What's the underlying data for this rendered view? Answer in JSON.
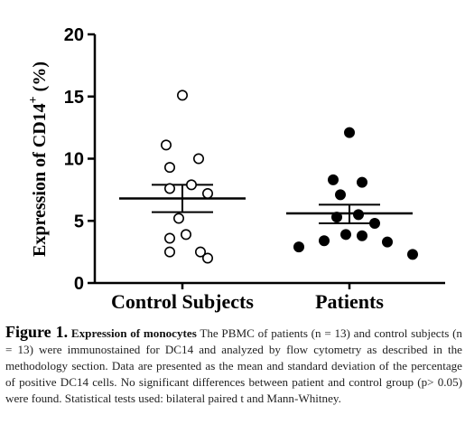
{
  "chart_data": {
    "type": "scatter",
    "categories": [
      "Control Subjects",
      "Patients"
    ],
    "ylabel": "Expression of CD14",
    "ylabel_superscript": "+",
    "ylabel_unit": " (%)",
    "ylim": [
      0,
      20
    ],
    "yticks": [
      "0",
      "5",
      "10",
      "15",
      "20"
    ],
    "series": [
      {
        "marker": "open-circle",
        "values": [
          15.1,
          11.1,
          10.0,
          9.3,
          7.9,
          7.6,
          7.2,
          5.2,
          3.9,
          3.6,
          2.5,
          2.5,
          2.0
        ],
        "mean": 6.8,
        "error": [
          5.7,
          7.9
        ]
      },
      {
        "marker": "filled-circle",
        "values": [
          12.1,
          8.3,
          8.1,
          7.1,
          5.5,
          5.3,
          4.8,
          3.9,
          3.8,
          3.4,
          3.3,
          2.9,
          2.3
        ],
        "mean": 5.6,
        "error": [
          4.8,
          6.3
        ]
      }
    ]
  },
  "caption": {
    "label": "Figure 1.",
    "title": "Expression of monocytes",
    "text": "The PBMC of patients (n = 13) and control subjects (n = 13) were immunostained for DC14 and analyzed by flow cytometry as described in the methodology section. Data are presented as the mean and standard deviation of the percentage of positive DC14 cells. No significant differences between patient and control group (p> 0.05) were found. Statistical tests used: bilateral paired t and Mann-Whitney."
  },
  "colors": {
    "ink": "#000000",
    "caption": "#222222"
  }
}
